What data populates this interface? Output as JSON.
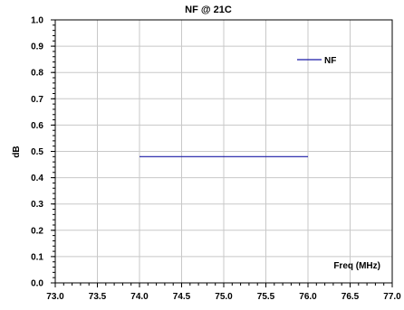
{
  "chart_data": {
    "type": "line",
    "title": "NF @ 21C",
    "xlabel": "Freq (MHz)",
    "ylabel": "dB",
    "xlim": [
      73.0,
      77.0
    ],
    "ylim": [
      0.0,
      1.0
    ],
    "x_ticks": [
      "73.0",
      "73.5",
      "74.0",
      "74.5",
      "75.0",
      "75.5",
      "76.0",
      "76.5",
      "77.0"
    ],
    "y_ticks": [
      "0.0",
      "0.1",
      "0.2",
      "0.3",
      "0.4",
      "0.5",
      "0.6",
      "0.7",
      "0.8",
      "0.9",
      "1.0"
    ],
    "grid": true,
    "legend": "top-right",
    "series": [
      {
        "name": "NF",
        "color": "#1a1aa6",
        "x": [
          74.0,
          76.0
        ],
        "y": [
          0.48,
          0.48
        ]
      }
    ]
  }
}
